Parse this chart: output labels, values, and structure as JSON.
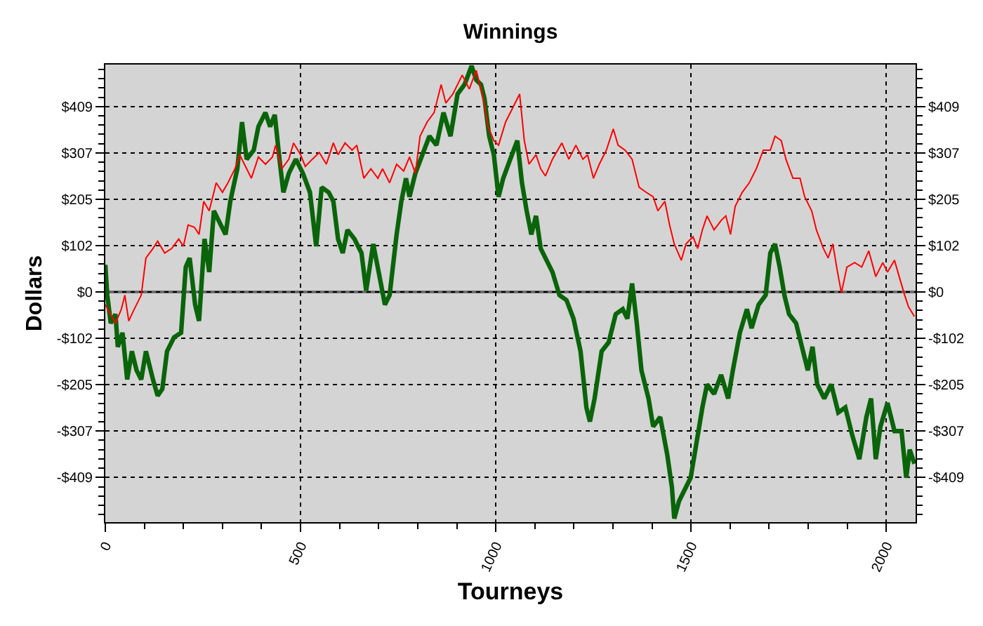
{
  "chart_data": {
    "type": "line",
    "title": "Winnings",
    "xlabel": "Tourneys",
    "ylabel": "Dollars",
    "xlim": [
      0,
      2075
    ],
    "xticks": [
      0,
      {
        "value": 100,
        "label": null
      },
      {
        "value": 200,
        "label": null
      },
      {
        "value": 300,
        "label": null
      },
      {
        "value": 400,
        "label": null
      },
      500,
      {
        "value": 600,
        "label": null
      },
      {
        "value": 700,
        "label": null
      },
      {
        "value": 800,
        "label": null
      },
      {
        "value": 900,
        "label": null
      },
      1000,
      {
        "value": 1100,
        "label": null
      },
      {
        "value": 1200,
        "label": null
      },
      {
        "value": 1300,
        "label": null
      },
      {
        "value": 1400,
        "label": null
      },
      1500,
      {
        "value": 1600,
        "label": null
      },
      {
        "value": 1700,
        "label": null
      },
      {
        "value": 1800,
        "label": null
      },
      {
        "value": 1900,
        "label": null
      },
      2000
    ],
    "ylim": [
      -508,
      502
    ],
    "yticks": [
      {
        "value": -491.2,
        "label": null
      },
      {
        "value": -470.7,
        "label": null
      },
      {
        "value": -450.3,
        "label": null
      },
      {
        "value": -429.8,
        "label": null
      },
      {
        "value": -409.3,
        "label": "-$409"
      },
      {
        "value": -388.9,
        "label": null
      },
      {
        "value": -368.4,
        "label": null
      },
      {
        "value": -347.9,
        "label": null
      },
      {
        "value": -327.5,
        "label": null
      },
      {
        "value": -307,
        "label": "-$307"
      },
      {
        "value": -286.5,
        "label": null
      },
      {
        "value": -266.1,
        "label": null
      },
      {
        "value": -245.6,
        "label": null
      },
      {
        "value": -225.1,
        "label": null
      },
      {
        "value": -204.7,
        "label": "-$205"
      },
      {
        "value": -184.2,
        "label": null
      },
      {
        "value": -163.7,
        "label": null
      },
      {
        "value": -143.3,
        "label": null
      },
      {
        "value": -122.8,
        "label": null
      },
      {
        "value": -102.3,
        "label": "-$102"
      },
      {
        "value": -81.9,
        "label": null
      },
      {
        "value": -61.4,
        "label": null
      },
      {
        "value": -40.9,
        "label": null
      },
      {
        "value": -20.5,
        "label": null
      },
      {
        "value": 0,
        "label": "$0"
      },
      {
        "value": 20.5,
        "label": null
      },
      {
        "value": 40.9,
        "label": null
      },
      {
        "value": 61.4,
        "label": null
      },
      {
        "value": 81.9,
        "label": null
      },
      {
        "value": 102.3,
        "label": "$102"
      },
      {
        "value": 122.8,
        "label": null
      },
      {
        "value": 143.3,
        "label": null
      },
      {
        "value": 163.7,
        "label": null
      },
      {
        "value": 184.2,
        "label": null
      },
      {
        "value": 204.7,
        "label": "$205"
      },
      {
        "value": 225.1,
        "label": null
      },
      {
        "value": 245.6,
        "label": null
      },
      {
        "value": 266.1,
        "label": null
      },
      {
        "value": 286.5,
        "label": null
      },
      {
        "value": 307,
        "label": "$307"
      },
      {
        "value": 327.5,
        "label": null
      },
      {
        "value": 347.9,
        "label": null
      },
      {
        "value": 368.4,
        "label": null
      },
      {
        "value": 388.9,
        "label": null
      },
      {
        "value": 409.3,
        "label": "$409"
      },
      {
        "value": 429.8,
        "label": null
      },
      {
        "value": 450.3,
        "label": null
      },
      {
        "value": 470.7,
        "label": null
      },
      {
        "value": 491.2,
        "label": null
      }
    ],
    "y2lim": [
      -508,
      502
    ],
    "y2ticks": [
      {
        "value": -491.2,
        "label": null
      },
      {
        "value": -470.7,
        "label": null
      },
      {
        "value": -450.3,
        "label": null
      },
      {
        "value": -429.8,
        "label": null
      },
      {
        "value": -409.3,
        "label": "-$409"
      },
      {
        "value": -388.9,
        "label": null
      },
      {
        "value": -368.4,
        "label": null
      },
      {
        "value": -347.9,
        "label": null
      },
      {
        "value": -327.5,
        "label": null
      },
      {
        "value": -307,
        "label": "-$307"
      },
      {
        "value": -286.5,
        "label": null
      },
      {
        "value": -266.1,
        "label": null
      },
      {
        "value": -245.6,
        "label": null
      },
      {
        "value": -225.1,
        "label": null
      },
      {
        "value": -204.7,
        "label": "-$205"
      },
      {
        "value": -184.2,
        "label": null
      },
      {
        "value": -163.7,
        "label": null
      },
      {
        "value": -143.3,
        "label": null
      },
      {
        "value": -122.8,
        "label": null
      },
      {
        "value": -102.3,
        "label": "-$102"
      },
      {
        "value": -81.9,
        "label": null
      },
      {
        "value": -61.4,
        "label": null
      },
      {
        "value": -40.9,
        "label": null
      },
      {
        "value": -20.5,
        "label": null
      },
      {
        "value": 0,
        "label": "$0"
      },
      {
        "value": 20.5,
        "label": null
      },
      {
        "value": 40.9,
        "label": null
      },
      {
        "value": 61.4,
        "label": null
      },
      {
        "value": 81.9,
        "label": null
      },
      {
        "value": 102.3,
        "label": "$102"
      },
      {
        "value": 122.8,
        "label": null
      },
      {
        "value": 143.3,
        "label": null
      },
      {
        "value": 163.7,
        "label": null
      },
      {
        "value": 184.2,
        "label": null
      },
      {
        "value": 204.7,
        "label": "$205"
      },
      {
        "value": 225.1,
        "label": null
      },
      {
        "value": 245.6,
        "label": null
      },
      {
        "value": 266.1,
        "label": null
      },
      {
        "value": 286.5,
        "label": null
      },
      {
        "value": 307,
        "label": "$307"
      },
      {
        "value": 327.5,
        "label": null
      },
      {
        "value": 347.9,
        "label": null
      },
      {
        "value": 368.4,
        "label": null
      },
      {
        "value": 388.9,
        "label": null
      },
      {
        "value": 409.3,
        "label": "$409"
      },
      {
        "value": 429.8,
        "label": null
      },
      {
        "value": 450.3,
        "label": null
      },
      {
        "value": 470.7,
        "label": null
      },
      {
        "value": 491.2,
        "label": null
      }
    ],
    "grid": true,
    "ref_lines": [
      {
        "axis": "y",
        "value": 0,
        "color": "#6e6e6e"
      }
    ],
    "series": [
      {
        "color": "#0a640a",
        "x": [
          0,
          5,
          14,
          26,
          32,
          44,
          56,
          68,
          80,
          92,
          104,
          122,
          134,
          146,
          158,
          176,
          194,
          206,
          216,
          230,
          240,
          254,
          266,
          278,
          290,
          308,
          320,
          338,
          350,
          362,
          380,
          392,
          410,
          422,
          434,
          446,
          456,
          470,
          488,
          506,
          524,
          540,
          554,
          572,
          584,
          596,
          608,
          620,
          638,
          656,
          668,
          686,
          700,
          716,
          728,
          746,
          758,
          770,
          779,
          794,
          812,
          830,
          848,
          866,
          884,
          902,
          920,
          938,
          950,
          962,
          971,
          983,
          995,
          1007,
          1019,
          1037,
          1055,
          1067,
          1079,
          1091,
          1103,
          1115,
          1127,
          1145,
          1163,
          1181,
          1199,
          1217,
          1232,
          1241,
          1253,
          1271,
          1289,
          1307,
          1325,
          1337,
          1349,
          1361,
          1373,
          1391,
          1403,
          1421,
          1439,
          1451,
          1457,
          1469,
          1481,
          1499,
          1511,
          1529,
          1541,
          1559,
          1577,
          1595,
          1607,
          1625,
          1643,
          1655,
          1673,
          1691,
          1703,
          1715,
          1727,
          1739,
          1751,
          1769,
          1781,
          1799,
          1811,
          1823,
          1841,
          1859,
          1877,
          1895,
          1913,
          1931,
          1949,
          1961,
          1973,
          1985,
          2003,
          2021,
          2039,
          2051,
          2060,
          2072
        ],
        "values": [
          60,
          -7,
          -69,
          -49,
          -121,
          -90,
          -193,
          -131,
          -173,
          -193,
          -131,
          -193,
          -229,
          -214,
          -131,
          -100,
          -90,
          55,
          75,
          -28,
          -64,
          117,
          44,
          179,
          158,
          127,
          200,
          272,
          375,
          293,
          313,
          365,
          396,
          365,
          391,
          293,
          220,
          262,
          293,
          262,
          220,
          101,
          231,
          220,
          200,
          117,
          86,
          137,
          117,
          86,
          3,
          106,
          44,
          -28,
          -7,
          127,
          200,
          251,
          210,
          262,
          303,
          344,
          324,
          396,
          344,
          437,
          458,
          499,
          468,
          458,
          427,
          344,
          303,
          210,
          251,
          293,
          334,
          241,
          179,
          127,
          168,
          96,
          75,
          44,
          -7,
          -18,
          -59,
          -131,
          -255,
          -286,
          -235,
          -131,
          -111,
          -49,
          -38,
          -59,
          19,
          -69,
          -173,
          -235,
          -297,
          -276,
          -359,
          -431,
          -500,
          -462,
          -441,
          -410,
          -348,
          -255,
          -204,
          -225,
          -183,
          -235,
          -173,
          -90,
          -38,
          -80,
          -28,
          -7,
          86,
          106,
          55,
          -7,
          -49,
          -69,
          -111,
          -173,
          -121,
          -204,
          -235,
          -204,
          -266,
          -255,
          -317,
          -369,
          -276,
          -235,
          -369,
          -297,
          -245,
          -307,
          -307,
          -410,
          -348,
          -379
        ]
      },
      {
        "color": "#ff0000",
        "axis": "y2",
        "x": [
          0,
          26,
          41,
          50,
          60,
          74,
          92,
          104,
          122,
          134,
          152,
          170,
          188,
          200,
          212,
          228,
          240,
          252,
          266,
          284,
          300,
          314,
          332,
          344,
          362,
          374,
          392,
          410,
          428,
          436,
          452,
          470,
          482,
          500,
          512,
          530,
          548,
          566,
          584,
          596,
          614,
          632,
          644,
          662,
          680,
          698,
          710,
          728,
          746,
          764,
          779,
          794,
          806,
          824,
          842,
          860,
          872,
          890,
          914,
          932,
          950,
          968,
          980,
          995,
          1007,
          1025,
          1043,
          1061,
          1073,
          1085,
          1103,
          1115,
          1127,
          1145,
          1169,
          1187,
          1205,
          1223,
          1235,
          1250,
          1265,
          1283,
          1301,
          1313,
          1331,
          1349,
          1367,
          1385,
          1403,
          1415,
          1433,
          1445,
          1457,
          1475,
          1487,
          1505,
          1517,
          1529,
          1541,
          1559,
          1577,
          1589,
          1601,
          1613,
          1631,
          1649,
          1667,
          1685,
          1703,
          1715,
          1731,
          1743,
          1761,
          1779,
          1791,
          1809,
          1821,
          1839,
          1851,
          1863,
          1875,
          1885,
          1899,
          1919,
          1937,
          1955,
          1973,
          1991,
          2003,
          2021,
          2033,
          2047,
          2057,
          2072
        ],
        "values": [
          -28,
          -69,
          -38,
          -7,
          -64,
          -38,
          -7,
          75,
          96,
          112,
          86,
          96,
          117,
          101,
          148,
          143,
          127,
          200,
          179,
          241,
          220,
          241,
          272,
          303,
          272,
          251,
          298,
          282,
          298,
          324,
          272,
          293,
          329,
          303,
          277,
          293,
          308,
          282,
          329,
          303,
          329,
          313,
          324,
          251,
          272,
          251,
          272,
          241,
          282,
          267,
          298,
          262,
          344,
          375,
          396,
          458,
          417,
          437,
          479,
          448,
          489,
          427,
          365,
          334,
          324,
          375,
          406,
          437,
          334,
          282,
          303,
          272,
          256,
          293,
          329,
          293,
          324,
          293,
          303,
          251,
          282,
          313,
          360,
          324,
          313,
          293,
          231,
          220,
          210,
          179,
          200,
          148,
          106,
          70,
          106,
          122,
          96,
          137,
          168,
          137,
          158,
          168,
          127,
          189,
          220,
          241,
          272,
          313,
          313,
          344,
          334,
          293,
          251,
          251,
          210,
          179,
          137,
          96,
          75,
          106,
          44,
          -2,
          55,
          65,
          55,
          91,
          34,
          65,
          44,
          70,
          34,
          -7,
          -33,
          -54
        ]
      }
    ]
  }
}
